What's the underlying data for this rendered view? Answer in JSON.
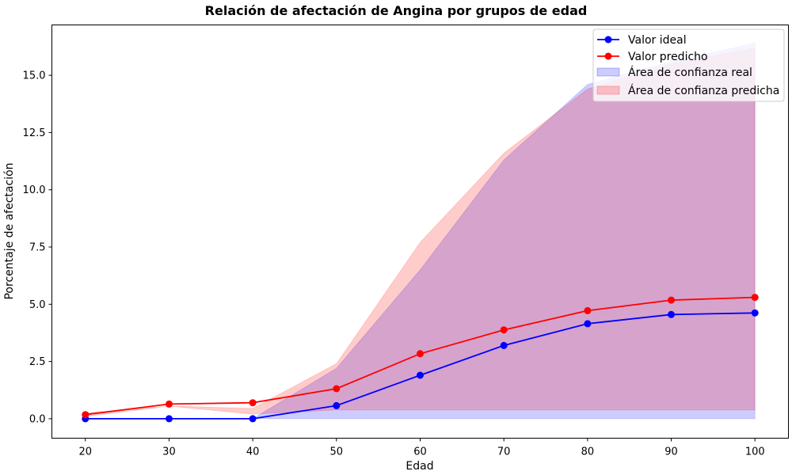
{
  "chart_data": {
    "type": "line",
    "title": "Relación de afectación de Angina por grupos de edad",
    "xlabel": "Edad",
    "ylabel": "Porcentaje de afectación",
    "x": [
      20,
      30,
      40,
      50,
      60,
      70,
      80,
      90,
      100
    ],
    "x_ticks": [
      "20",
      "30",
      "40",
      "50",
      "60",
      "70",
      "80",
      "90",
      "100"
    ],
    "y_ticks": [
      "0.0",
      "2.5",
      "5.0",
      "7.5",
      "10.0",
      "12.5",
      "15.0"
    ],
    "xlim": [
      16,
      104
    ],
    "ylim": [
      -0.85,
      17.2
    ],
    "series": [
      {
        "name": "Valor ideal",
        "color": "#0000ff",
        "values": [
          0.0,
          0.0,
          0.0,
          0.57,
          1.9,
          3.2,
          4.15,
          4.55,
          4.62
        ]
      },
      {
        "name": "Valor predicho",
        "color": "#ff0000",
        "values": [
          0.18,
          0.64,
          0.7,
          1.31,
          2.84,
          3.88,
          4.72,
          5.18,
          5.3
        ]
      }
    ],
    "bands": [
      {
        "name": "Área de confianza real",
        "color": "#0000ff",
        "opacity": 0.2,
        "lower": [
          0.0,
          0.0,
          0.0,
          0.0,
          0.0,
          0.0,
          0.0,
          0.0,
          0.0
        ],
        "upper": [
          0.0,
          0.0,
          0.0,
          2.2,
          6.5,
          11.3,
          14.6,
          15.6,
          16.4
        ]
      },
      {
        "name": "Área de confianza predicha",
        "color": "#ff0000",
        "opacity": 0.2,
        "lower": [
          0.1,
          0.55,
          0.2,
          0.38,
          0.38,
          0.38,
          0.38,
          0.38,
          0.38
        ],
        "upper": [
          0.25,
          0.55,
          0.45,
          2.4,
          7.7,
          11.6,
          14.4,
          15.5,
          16.2
        ]
      }
    ],
    "legend_position": "top-right",
    "grid": false
  }
}
